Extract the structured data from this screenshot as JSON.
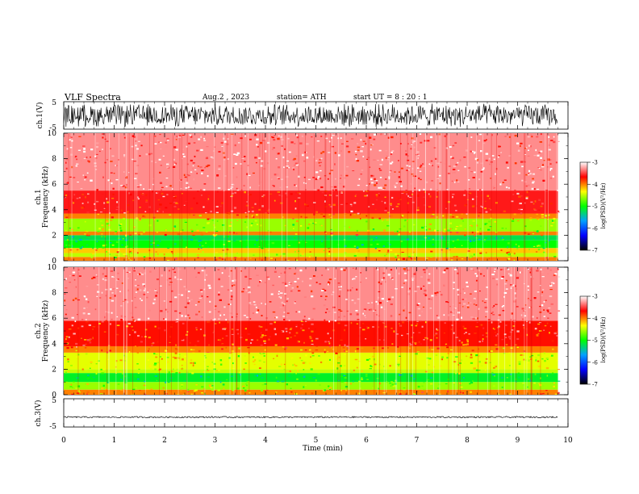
{
  "header": {
    "title": "VLF  Spectra",
    "date": "Aug.2  , 2023",
    "station": "station= ATH",
    "start": "start  UT  =    8  : 20 : 1"
  },
  "colors": {
    "colormap": [
      "#000000",
      "#0000ff",
      "#00a0ff",
      "#00ff00",
      "#ffff00",
      "#ff0000",
      "#ffffff"
    ],
    "trace": "#000000",
    "axis": "#000000"
  },
  "chart_data": [
    {
      "type": "line",
      "name": "channel-1-waveform",
      "ylabel": "ch.1(V)",
      "ylim": [
        -5,
        5
      ],
      "yticks": [
        "5",
        "-5"
      ],
      "description_values": {
        "approx_amplitude_V": 4.5,
        "style": "dense noise"
      }
    },
    {
      "type": "heatmap",
      "name": "channel-1-spectrogram",
      "ylabel_line1": "ch.1",
      "ylabel_line2": "Frequency (kHz)",
      "ylim": [
        0,
        10
      ],
      "yticks": [
        "0",
        "2",
        "4",
        "6",
        "8",
        "10"
      ],
      "colorbar": {
        "label": "log(PSD)(V²/Hz)",
        "range": [
          -7,
          -3
        ],
        "ticks": [
          "-3",
          "-4",
          "-5",
          "-6",
          "-7"
        ]
      },
      "bands_kHz": [
        {
          "from": 0.0,
          "to": 0.3,
          "level": -4.0
        },
        {
          "from": 0.3,
          "to": 0.6,
          "level": -4.5
        },
        {
          "from": 0.6,
          "to": 1.0,
          "level": -4.2
        },
        {
          "from": 1.0,
          "to": 1.6,
          "level": -5.0
        },
        {
          "from": 1.6,
          "to": 2.0,
          "level": -5.2
        },
        {
          "from": 2.0,
          "to": 2.3,
          "level": -4.0
        },
        {
          "from": 2.3,
          "to": 3.3,
          "level": -4.6
        },
        {
          "from": 3.3,
          "to": 3.7,
          "level": -4.0
        },
        {
          "from": 3.7,
          "to": 5.5,
          "level": -3.6
        },
        {
          "from": 5.5,
          "to": 10.0,
          "level": -3.3
        }
      ]
    },
    {
      "type": "heatmap",
      "name": "channel-2-spectrogram",
      "ylabel_line1": "ch.2",
      "ylabel_line2": "Frequency (kHz)",
      "ylim": [
        0,
        10
      ],
      "yticks": [
        "0",
        "2",
        "4",
        "6",
        "8",
        "10"
      ],
      "colorbar": {
        "label": "log(PSD)(V²/Hz)",
        "range": [
          -7,
          -3
        ],
        "ticks": [
          "-3",
          "-4",
          "-5",
          "-6",
          "-7"
        ]
      },
      "bands_kHz": [
        {
          "from": 0.0,
          "to": 0.4,
          "level": -4.0
        },
        {
          "from": 0.4,
          "to": 1.0,
          "level": -4.6
        },
        {
          "from": 1.0,
          "to": 1.7,
          "level": -5.1
        },
        {
          "from": 1.7,
          "to": 2.0,
          "level": -4.5
        },
        {
          "from": 2.0,
          "to": 3.3,
          "level": -4.4
        },
        {
          "from": 3.3,
          "to": 3.8,
          "level": -4.0
        },
        {
          "from": 3.8,
          "to": 5.8,
          "level": -3.7
        },
        {
          "from": 5.8,
          "to": 10.0,
          "level": -3.3
        }
      ]
    },
    {
      "type": "line",
      "name": "channel-3-waveform",
      "ylabel": "ch.3(V)",
      "ylim": [
        -5,
        5
      ],
      "yticks": [
        "5",
        "-5"
      ],
      "description_values": {
        "approx_level_V": -1.5,
        "style": "flat thin trace"
      }
    }
  ],
  "time_axis": {
    "xlabel": "Time  (min)",
    "xlim": [
      0,
      10
    ],
    "data_end_min": 9.8,
    "ticks": [
      "0",
      "1",
      "2",
      "3",
      "4",
      "5",
      "6",
      "7",
      "8",
      "9",
      "10"
    ]
  }
}
